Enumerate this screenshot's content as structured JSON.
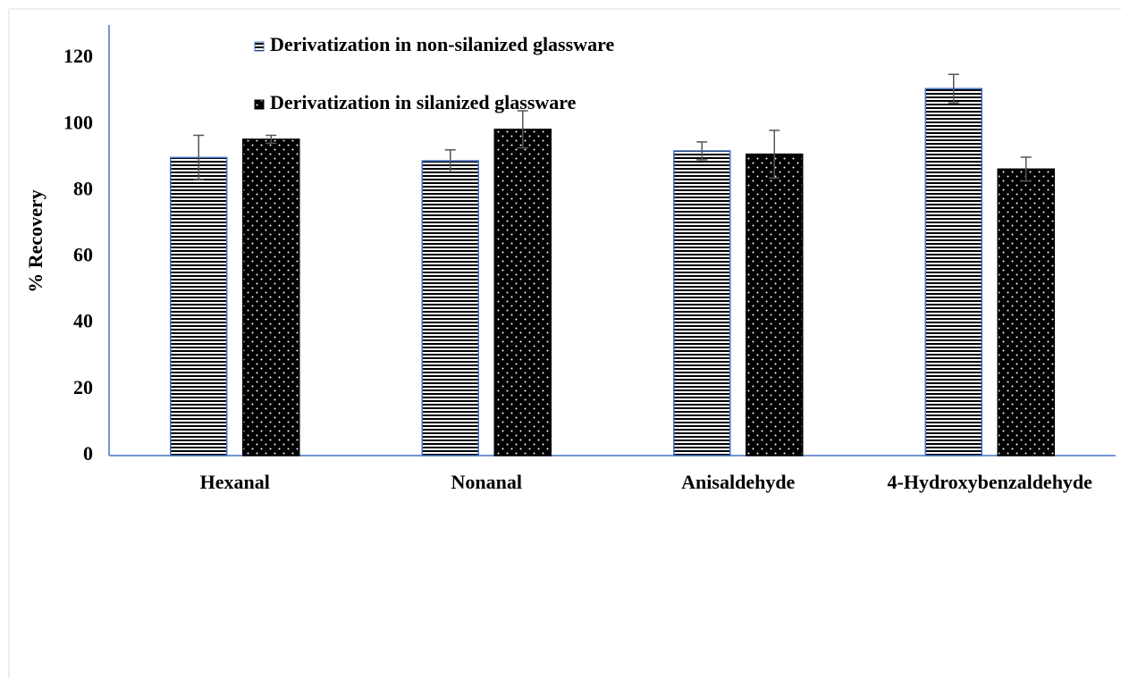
{
  "chart_data": {
    "type": "bar",
    "y_label": "% Recovery",
    "categories": [
      "Hexanal",
      "Nonanal",
      "Anisaldehyde",
      "4-Hydroxybenzaldehyde"
    ],
    "series": [
      {
        "name": "Derivatization in non-silanized glassware",
        "color": "#000000",
        "pattern": "stripes",
        "values": [
          90,
          89,
          92,
          110.8
        ],
        "errors": [
          6.7,
          3.3,
          2.7,
          4.3
        ]
      },
      {
        "name": "Derivatization in silanized glassware",
        "color": "#000000",
        "pattern": "dots",
        "values": [
          95.5,
          98.5,
          91,
          86.5
        ],
        "errors": [
          1.2,
          5.6,
          7.2,
          3.6
        ]
      }
    ],
    "ylim": [
      0,
      130
    ],
    "yticks": [
      0,
      20,
      40,
      60,
      80,
      100,
      120
    ],
    "grid": false,
    "legend": "top"
  }
}
